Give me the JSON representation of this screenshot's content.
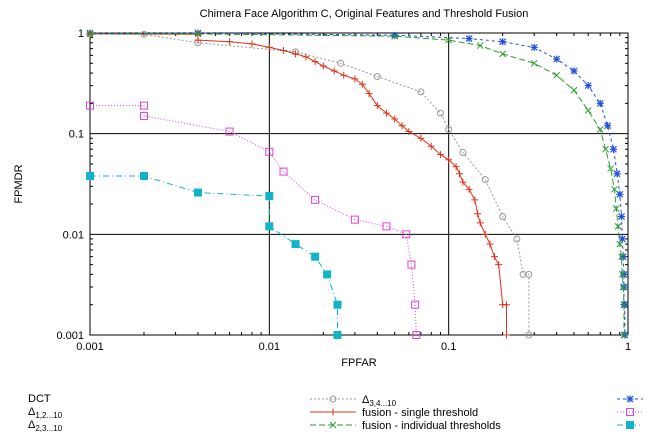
{
  "chart_data": {
    "type": "line",
    "title": "Chimera Face Algorithm C, Original Features and Threshold Fusion",
    "xlabel": "FPFAR",
    "ylabel": "FPMDR",
    "xscale": "log",
    "yscale": "log",
    "xlim": [
      0.001,
      1
    ],
    "ylim": [
      0.001,
      1
    ],
    "x_ticks": [
      {
        "value": 0.001,
        "label": "0.001"
      },
      {
        "value": 0.01,
        "label": "0.01"
      },
      {
        "value": 0.1,
        "label": "0.1"
      },
      {
        "value": 1,
        "label": "1"
      }
    ],
    "y_ticks": [
      {
        "value": 0.001,
        "label": "0.001"
      },
      {
        "value": 0.01,
        "label": "0.01"
      },
      {
        "value": 0.1,
        "label": "0.1"
      },
      {
        "value": 1,
        "label": "1"
      }
    ],
    "grid": true,
    "legend_position": "below",
    "series": [
      {
        "name": "DCT",
        "color": "#1f4fe0",
        "dash": "3,3",
        "marker": "asterisk",
        "points": [
          [
            0.001,
            1.0
          ],
          [
            0.004,
            1.0
          ],
          [
            0.05,
            0.95
          ],
          [
            0.13,
            0.88
          ],
          [
            0.2,
            0.82
          ],
          [
            0.3,
            0.72
          ],
          [
            0.4,
            0.55
          ],
          [
            0.5,
            0.42
          ],
          [
            0.6,
            0.3
          ],
          [
            0.7,
            0.2
          ],
          [
            0.77,
            0.12
          ],
          [
            0.83,
            0.07
          ],
          [
            0.87,
            0.04
          ],
          [
            0.9,
            0.025
          ],
          [
            0.92,
            0.015
          ],
          [
            0.93,
            0.009
          ],
          [
            0.94,
            0.006
          ],
          [
            0.95,
            0.004
          ],
          [
            0.95,
            0.003
          ],
          [
            0.95,
            0.002
          ],
          [
            0.96,
            0.002
          ],
          [
            0.96,
            0.001
          ]
        ]
      },
      {
        "name": "Δ1,2...10",
        "label_main": "Δ",
        "label_sub": "1,2...10",
        "color": "#dd44dd",
        "dash": "1,2",
        "marker": "square-open",
        "points": [
          [
            0.001,
            0.19
          ],
          [
            0.002,
            0.19
          ],
          [
            0.002,
            0.15
          ],
          [
            0.006,
            0.105
          ],
          [
            0.01,
            0.066
          ],
          [
            0.012,
            0.042
          ],
          [
            0.018,
            0.022
          ],
          [
            0.03,
            0.014
          ],
          [
            0.045,
            0.012
          ],
          [
            0.058,
            0.01
          ],
          [
            0.062,
            0.005
          ],
          [
            0.065,
            0.002
          ],
          [
            0.066,
            0.001
          ]
        ]
      },
      {
        "name": "Δ2,3...10",
        "label_main": "Δ",
        "label_sub": "2,3...10",
        "color": "#11b3c8",
        "dash": "6,3,1,3",
        "marker": "square-filled",
        "points": [
          [
            0.001,
            0.038
          ],
          [
            0.002,
            0.038
          ],
          [
            0.004,
            0.026
          ],
          [
            0.01,
            0.024
          ],
          [
            0.01,
            0.012
          ],
          [
            0.014,
            0.008
          ],
          [
            0.018,
            0.006
          ],
          [
            0.021,
            0.004
          ],
          [
            0.024,
            0.002
          ],
          [
            0.024,
            0.001
          ]
        ]
      },
      {
        "name": "Δ3,4...10",
        "label_main": "Δ",
        "label_sub": "3,4...10",
        "color": "#999999",
        "dash": "2,2",
        "marker": "circle-open",
        "points": [
          [
            0.001,
            0.98
          ],
          [
            0.002,
            0.97
          ],
          [
            0.004,
            0.8
          ],
          [
            0.014,
            0.65
          ],
          [
            0.025,
            0.5
          ],
          [
            0.04,
            0.37
          ],
          [
            0.07,
            0.26
          ],
          [
            0.09,
            0.16
          ],
          [
            0.1,
            0.11
          ],
          [
            0.12,
            0.065
          ],
          [
            0.16,
            0.035
          ],
          [
            0.2,
            0.015
          ],
          [
            0.24,
            0.009
          ],
          [
            0.26,
            0.004
          ],
          [
            0.28,
            0.004
          ],
          [
            0.28,
            0.001
          ]
        ]
      },
      {
        "name": "fusion - single threshold",
        "color": "#e0341c",
        "dash": "",
        "marker": "plus",
        "points": [
          [
            0.001,
            0.98
          ],
          [
            0.004,
            0.97
          ],
          [
            0.004,
            0.85
          ],
          [
            0.006,
            0.82
          ],
          [
            0.008,
            0.78
          ],
          [
            0.01,
            0.72
          ],
          [
            0.012,
            0.67
          ],
          [
            0.014,
            0.62
          ],
          [
            0.016,
            0.58
          ],
          [
            0.018,
            0.52
          ],
          [
            0.02,
            0.47
          ],
          [
            0.023,
            0.42
          ],
          [
            0.026,
            0.38
          ],
          [
            0.03,
            0.35
          ],
          [
            0.033,
            0.31
          ],
          [
            0.036,
            0.25
          ],
          [
            0.04,
            0.19
          ],
          [
            0.045,
            0.16
          ],
          [
            0.05,
            0.14
          ],
          [
            0.055,
            0.12
          ],
          [
            0.06,
            0.105
          ],
          [
            0.07,
            0.09
          ],
          [
            0.08,
            0.075
          ],
          [
            0.09,
            0.062
          ],
          [
            0.1,
            0.055
          ],
          [
            0.11,
            0.047
          ],
          [
            0.115,
            0.04
          ],
          [
            0.12,
            0.033
          ],
          [
            0.13,
            0.028
          ],
          [
            0.14,
            0.022
          ],
          [
            0.145,
            0.016
          ],
          [
            0.15,
            0.013
          ],
          [
            0.16,
            0.01
          ],
          [
            0.17,
            0.008
          ],
          [
            0.18,
            0.006
          ],
          [
            0.19,
            0.005
          ],
          [
            0.2,
            0.002
          ],
          [
            0.21,
            0.002
          ],
          [
            0.21,
            0.001
          ]
        ]
      },
      {
        "name": "fusion  - individual thresholds",
        "color": "#2a9a2a",
        "dash": "6,3",
        "marker": "cross",
        "points": [
          [
            0.001,
            0.98
          ],
          [
            0.004,
            0.98
          ],
          [
            0.05,
            0.93
          ],
          [
            0.1,
            0.85
          ],
          [
            0.15,
            0.75
          ],
          [
            0.2,
            0.62
          ],
          [
            0.3,
            0.5
          ],
          [
            0.4,
            0.38
          ],
          [
            0.5,
            0.27
          ],
          [
            0.6,
            0.17
          ],
          [
            0.7,
            0.11
          ],
          [
            0.75,
            0.07
          ],
          [
            0.8,
            0.045
          ],
          [
            0.84,
            0.028
          ],
          [
            0.86,
            0.018
          ],
          [
            0.88,
            0.012
          ],
          [
            0.9,
            0.008
          ],
          [
            0.92,
            0.006
          ],
          [
            0.93,
            0.004
          ],
          [
            0.94,
            0.003
          ],
          [
            0.95,
            0.002
          ],
          [
            0.95,
            0.001
          ]
        ]
      }
    ]
  }
}
